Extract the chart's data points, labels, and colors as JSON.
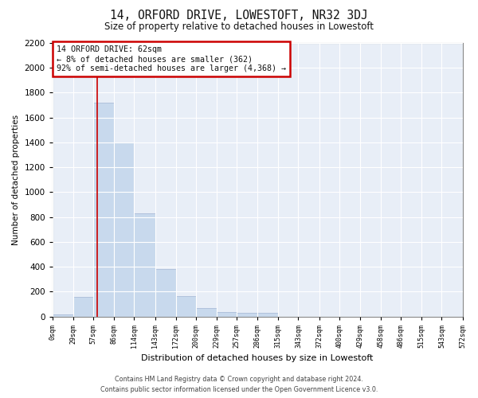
{
  "title": "14, ORFORD DRIVE, LOWESTOFT, NR32 3DJ",
  "subtitle": "Size of property relative to detached houses in Lowestoft",
  "xlabel": "Distribution of detached houses by size in Lowestoft",
  "ylabel": "Number of detached properties",
  "bar_color": "#c8d9ed",
  "bar_edge_color": "#aabcd8",
  "background_color": "#e8eef7",
  "grid_color": "#ffffff",
  "property_line_x": 62,
  "property_line_color": "#cc0000",
  "annotation_text": "14 ORFORD DRIVE: 62sqm\n← 8% of detached houses are smaller (362)\n92% of semi-detached houses are larger (4,368) →",
  "annotation_box_color": "#ffffff",
  "annotation_border_color": "#cc0000",
  "bin_edges": [
    0,
    29,
    57,
    86,
    114,
    143,
    172,
    200,
    229,
    257,
    286,
    315,
    343,
    372,
    400,
    429,
    458,
    486,
    515,
    543,
    572
  ],
  "bar_heights": [
    15,
    155,
    1720,
    1400,
    830,
    385,
    165,
    65,
    35,
    30,
    30,
    0,
    0,
    0,
    0,
    0,
    0,
    0,
    0,
    0
  ],
  "ylim": [
    0,
    2200
  ],
  "yticks": [
    0,
    200,
    400,
    600,
    800,
    1000,
    1200,
    1400,
    1600,
    1800,
    2000,
    2200
  ],
  "fig_width": 6.0,
  "fig_height": 5.0,
  "fig_dpi": 100,
  "footer_line1": "Contains HM Land Registry data © Crown copyright and database right 2024.",
  "footer_line2": "Contains public sector information licensed under the Open Government Licence v3.0."
}
